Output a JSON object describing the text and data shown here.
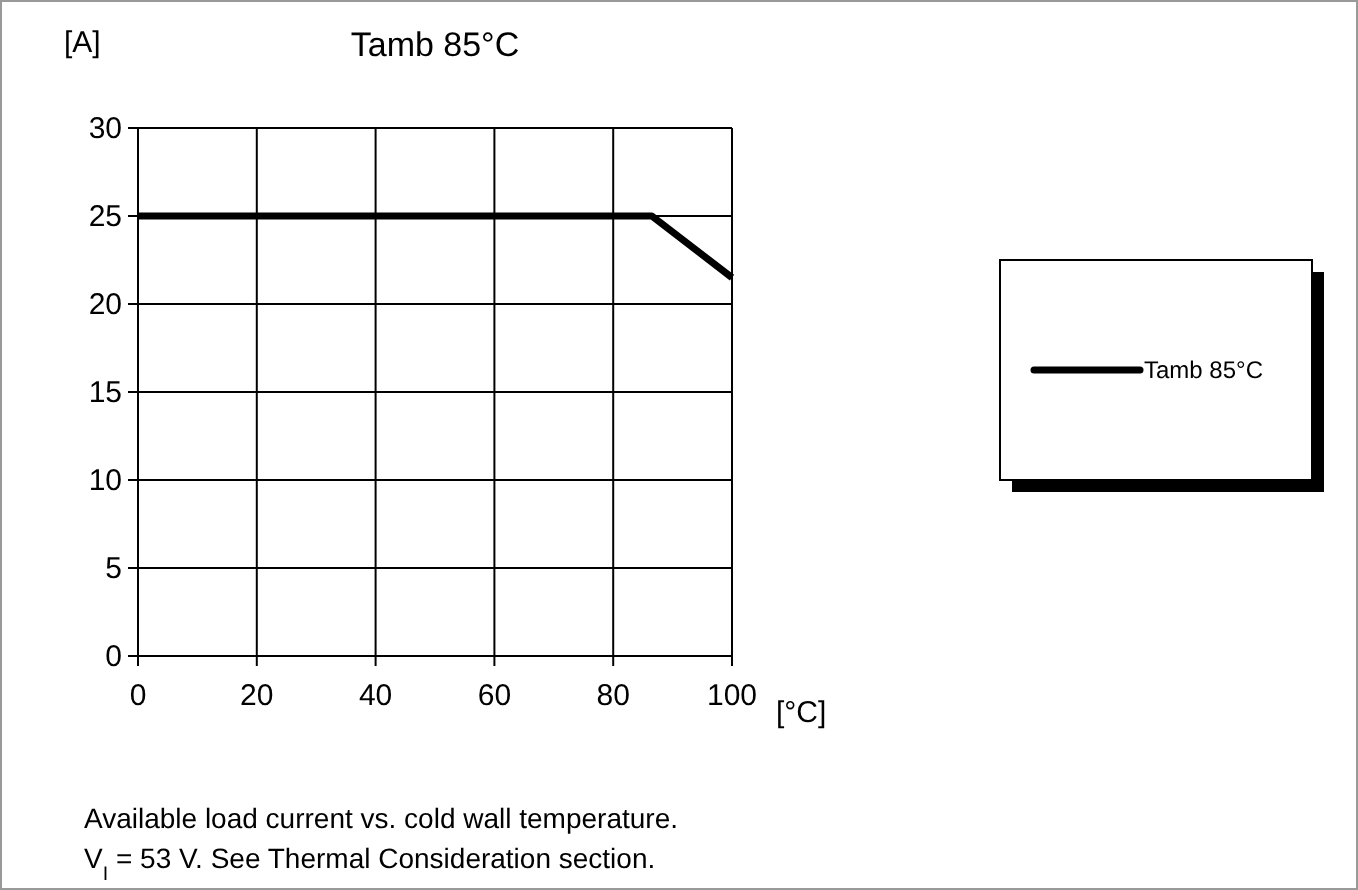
{
  "chart_data": {
    "type": "line",
    "title": "Tamb 85°C",
    "xlabel": "[°C]",
    "ylabel": "[A]",
    "series": [
      {
        "name": "Tamb 85°C",
        "color": "#000000",
        "x": [
          0,
          86.5,
          100
        ],
        "values": [
          25,
          25,
          21.5
        ]
      }
    ],
    "xlim": [
      0,
      100
    ],
    "xticks": [
      0,
      20,
      40,
      60,
      80,
      100
    ],
    "ylim": [
      0,
      30
    ],
    "yticks": [
      0,
      5,
      10,
      15,
      20,
      25,
      30
    ],
    "grid": true,
    "legend": "right",
    "marker": "none",
    "line_style": "solid",
    "annotations": [
      "Available load current vs. cold wall temperature.",
      "V$_{I}$ = 53 V. See Thermal Consideration section."
    ]
  }
}
